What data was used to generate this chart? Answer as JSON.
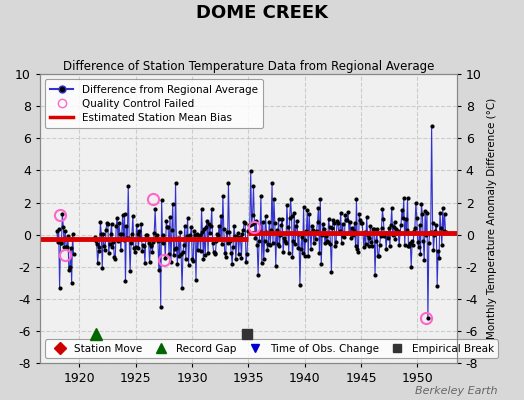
{
  "title": "DOME CREEK",
  "subtitle": "Difference of Station Temperature Data from Regional Average",
  "ylabel": "Monthly Temperature Anomaly Difference (°C)",
  "xlabel_years": [
    1920,
    1925,
    1930,
    1935,
    1940,
    1945,
    1950
  ],
  "ylim": [
    -8,
    10
  ],
  "xlim": [
    1916.5,
    1953.5
  ],
  "background_color": "#d8d8d8",
  "plot_bg_color": "#f0f0f0",
  "grid_color": "#cccccc",
  "line_color": "#3333cc",
  "bias_color": "#dd0000",
  "qc_color": "#ff66cc",
  "watermark": "Berkeley Earth",
  "bias_segments": [
    {
      "x": [
        1916.5,
        1935.0
      ],
      "y": [
        -0.3,
        -0.3
      ]
    },
    {
      "x": [
        1935.0,
        1953.5
      ],
      "y": [
        0.1,
        0.1
      ]
    }
  ],
  "qc_failed_points": [
    [
      1918.3,
      1.2
    ],
    [
      1918.7,
      -1.3
    ],
    [
      1926.5,
      2.2
    ],
    [
      1927.5,
      -1.6
    ],
    [
      1935.5,
      0.5
    ],
    [
      1950.8,
      -5.2
    ]
  ],
  "markers": {
    "record_gap": {
      "year": 1921.5,
      "color": "#006600",
      "marker": "^",
      "label": "Record Gap"
    },
    "empirical_break": {
      "year": 1934.9,
      "color": "#333333",
      "marker": "s",
      "label": "Empirical Break"
    }
  },
  "legend_markers": {
    "station_move": {
      "color": "#cc0000",
      "marker": "D",
      "label": "Station Move"
    },
    "record_gap": {
      "color": "#006600",
      "marker": "^",
      "label": "Record Gap"
    },
    "time_obs_change": {
      "color": "#0000cc",
      "marker": "v",
      "label": "Time of Obs. Change"
    },
    "empirical_break": {
      "color": "#333333",
      "marker": "s",
      "label": "Empirical Break"
    }
  },
  "seed": 42,
  "n_data_points": 420
}
